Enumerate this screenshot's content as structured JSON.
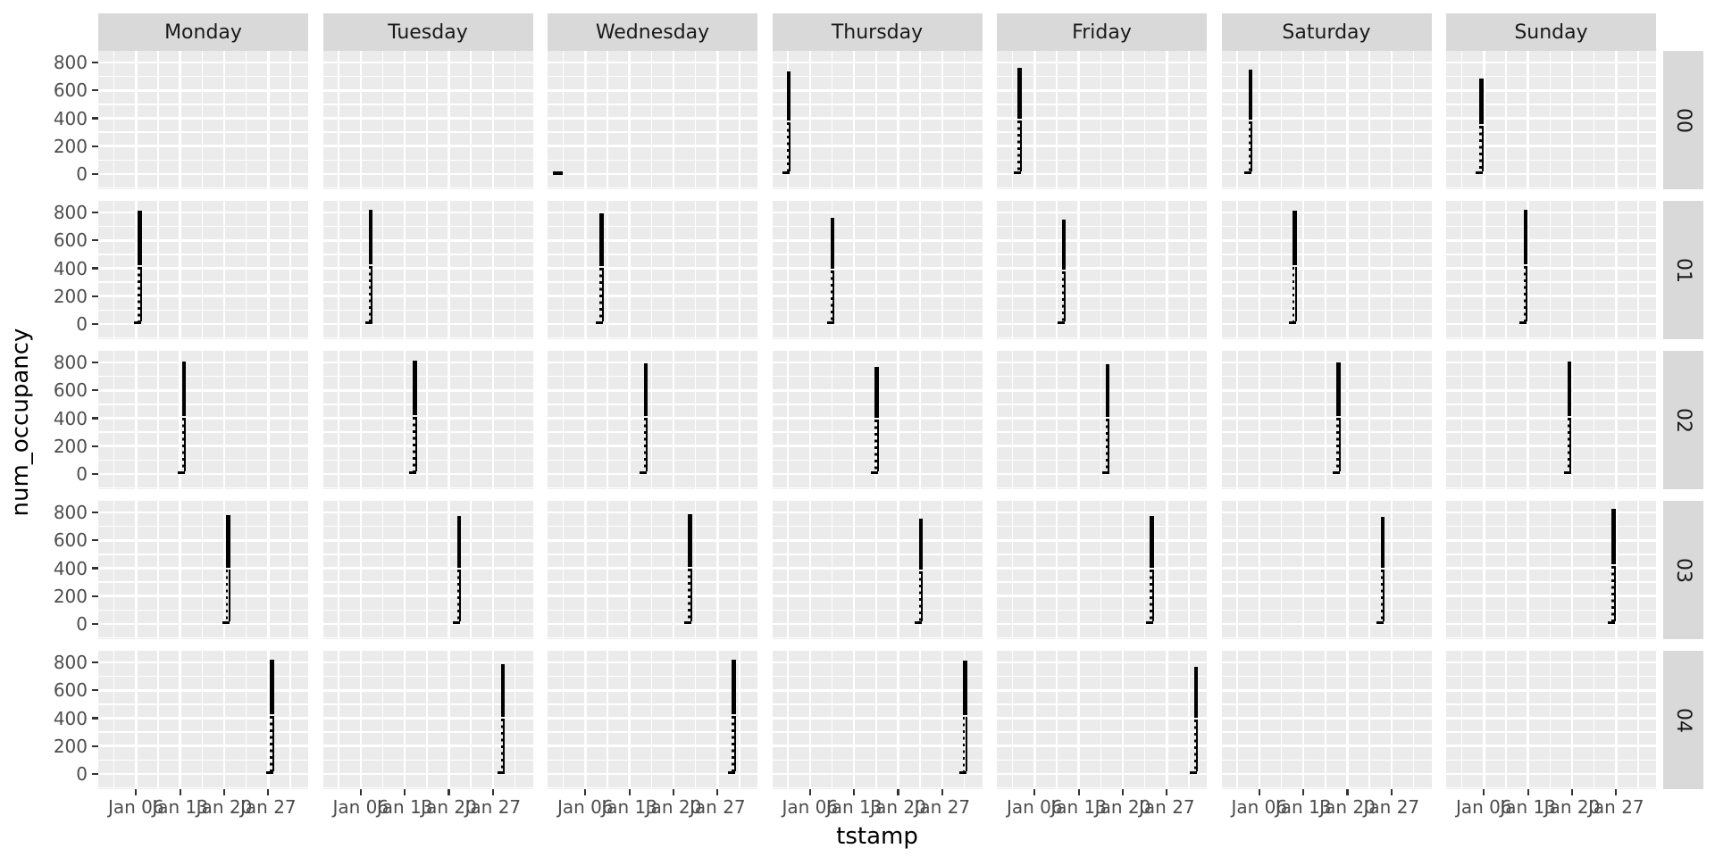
{
  "titles": {
    "y": "num_occupancy",
    "x": "tstamp"
  },
  "facet_columns": [
    "Monday",
    "Tuesday",
    "Wednesday",
    "Thursday",
    "Friday",
    "Saturday",
    "Sunday"
  ],
  "facet_rows": [
    "00",
    "01",
    "02",
    "03",
    "04"
  ],
  "y_axis": {
    "ticks": [
      "800",
      "600",
      "400",
      "200",
      "0"
    ],
    "tick_values": [
      800,
      600,
      400,
      200,
      0
    ]
  },
  "x_axis": {
    "ticks": [
      "Jan 06",
      "Jan 13",
      "Jan 20",
      "Jan 27"
    ]
  },
  "colors": {
    "panel_background": "#EBEBEB",
    "strip_background": "#D9D9D9",
    "gridline": "#FFFFFF",
    "spike": "#000000",
    "tick_text": "#4D4D4D",
    "strip_text": "#1A1A1A",
    "title_text": "#000000"
  },
  "chart_data": {
    "type": "line",
    "title": "",
    "xlabel": "tstamp",
    "ylabel": "num_occupancy",
    "facet_grid": {
      "columns": [
        "Monday",
        "Tuesday",
        "Wednesday",
        "Thursday",
        "Friday",
        "Saturday",
        "Sunday"
      ],
      "rows": [
        "00",
        "01",
        "02",
        "03",
        "04"
      ]
    },
    "x_tick_labels": [
      "Jan 06",
      "Jan 13",
      "Jan 20",
      "Jan 27"
    ],
    "y_ticks": [
      0,
      200,
      400,
      600,
      800
    ],
    "ylim": [
      -100,
      880
    ],
    "legend": "none",
    "grid": "major-and-minor",
    "description": "Each facet shows one day's occupancy time-series as a near-vertical spike rising from ~0 to its peak and back; facet row = week of January, facet column = weekday.",
    "spikes": [
      {
        "row": "00",
        "col": "Wednesday",
        "date": "Jan 01",
        "peak": 10,
        "style": "dash"
      },
      {
        "row": "00",
        "col": "Thursday",
        "date": "Jan 02",
        "peak": 735,
        "style": "spike"
      },
      {
        "row": "00",
        "col": "Friday",
        "date": "Jan 03",
        "peak": 760,
        "style": "spike"
      },
      {
        "row": "00",
        "col": "Saturday",
        "date": "Jan 04",
        "peak": 750,
        "style": "spike"
      },
      {
        "row": "00",
        "col": "Sunday",
        "date": "Jan 05",
        "peak": 685,
        "style": "spike"
      },
      {
        "row": "01",
        "col": "Monday",
        "date": "Jan 06",
        "peak": 815,
        "style": "spike"
      },
      {
        "row": "01",
        "col": "Tuesday",
        "date": "Jan 07",
        "peak": 820,
        "style": "spike"
      },
      {
        "row": "01",
        "col": "Wednesday",
        "date": "Jan 08",
        "peak": 795,
        "style": "spike"
      },
      {
        "row": "01",
        "col": "Thursday",
        "date": "Jan 09",
        "peak": 760,
        "style": "spike"
      },
      {
        "row": "01",
        "col": "Friday",
        "date": "Jan 10",
        "peak": 750,
        "style": "spike"
      },
      {
        "row": "01",
        "col": "Saturday",
        "date": "Jan 11",
        "peak": 815,
        "style": "spike"
      },
      {
        "row": "01",
        "col": "Sunday",
        "date": "Jan 12",
        "peak": 820,
        "style": "spike"
      },
      {
        "row": "02",
        "col": "Monday",
        "date": "Jan 13",
        "peak": 805,
        "style": "spike"
      },
      {
        "row": "02",
        "col": "Tuesday",
        "date": "Jan 14",
        "peak": 815,
        "style": "spike"
      },
      {
        "row": "02",
        "col": "Wednesday",
        "date": "Jan 15",
        "peak": 795,
        "style": "spike"
      },
      {
        "row": "02",
        "col": "Thursday",
        "date": "Jan 16",
        "peak": 770,
        "style": "spike"
      },
      {
        "row": "02",
        "col": "Friday",
        "date": "Jan 17",
        "peak": 785,
        "style": "spike"
      },
      {
        "row": "02",
        "col": "Saturday",
        "date": "Jan 18",
        "peak": 800,
        "style": "spike"
      },
      {
        "row": "02",
        "col": "Sunday",
        "date": "Jan 19",
        "peak": 805,
        "style": "spike"
      },
      {
        "row": "03",
        "col": "Monday",
        "date": "Jan 20",
        "peak": 780,
        "style": "spike"
      },
      {
        "row": "03",
        "col": "Tuesday",
        "date": "Jan 21",
        "peak": 775,
        "style": "spike"
      },
      {
        "row": "03",
        "col": "Wednesday",
        "date": "Jan 22",
        "peak": 790,
        "style": "spike"
      },
      {
        "row": "03",
        "col": "Thursday",
        "date": "Jan 23",
        "peak": 755,
        "style": "spike"
      },
      {
        "row": "03",
        "col": "Friday",
        "date": "Jan 24",
        "peak": 775,
        "style": "spike"
      },
      {
        "row": "03",
        "col": "Saturday",
        "date": "Jan 25",
        "peak": 770,
        "style": "spike"
      },
      {
        "row": "03",
        "col": "Sunday",
        "date": "Jan 26",
        "peak": 825,
        "style": "spike"
      },
      {
        "row": "04",
        "col": "Monday",
        "date": "Jan 27",
        "peak": 820,
        "style": "spike"
      },
      {
        "row": "04",
        "col": "Tuesday",
        "date": "Jan 28",
        "peak": 790,
        "style": "spike"
      },
      {
        "row": "04",
        "col": "Wednesday",
        "date": "Jan 29",
        "peak": 820,
        "style": "spike"
      },
      {
        "row": "04",
        "col": "Thursday",
        "date": "Jan 30",
        "peak": 810,
        "style": "spike"
      },
      {
        "row": "04",
        "col": "Friday",
        "date": "Jan 31",
        "peak": 770,
        "style": "spike"
      }
    ]
  }
}
